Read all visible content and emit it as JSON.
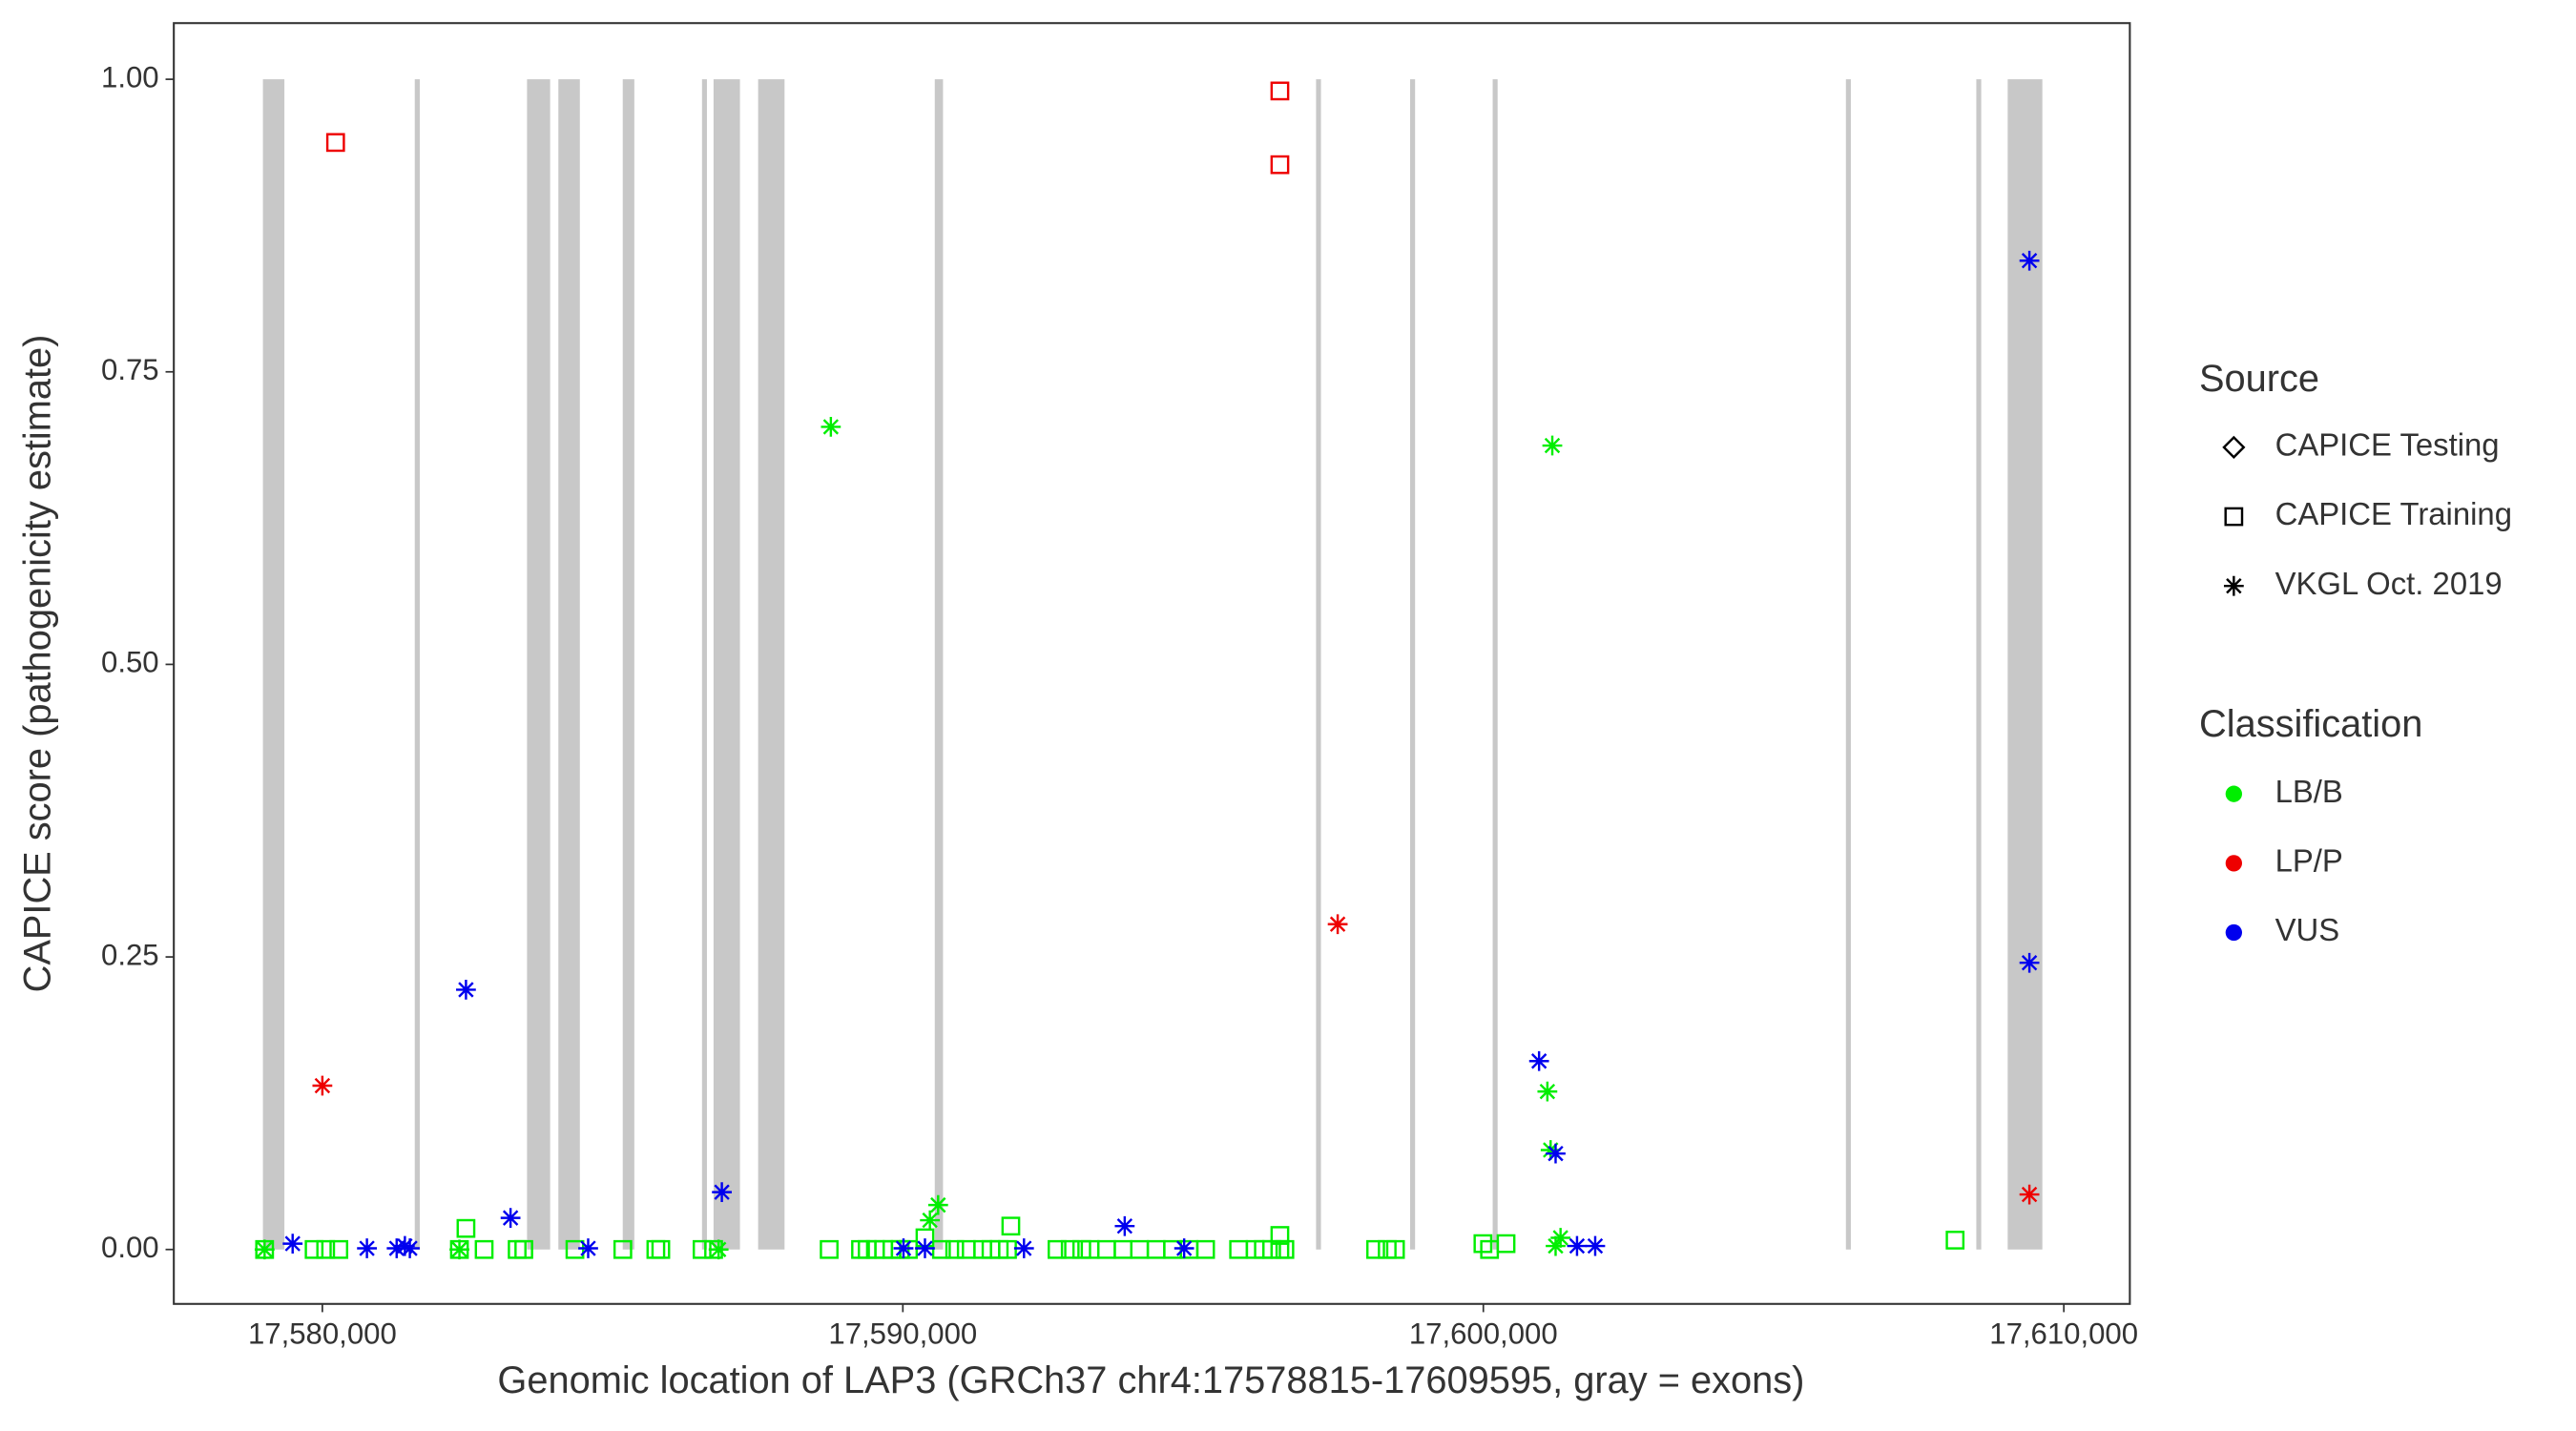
{
  "chart_data": {
    "type": "scatter",
    "x_label": "Genomic location of LAP3 (GRCh37 chr4:17578815-17609595, gray = exons)",
    "y_label": "CAPICE score (pathogenicity estimate)",
    "xlim": [
      17577441,
      17611137
    ],
    "ylim": [
      -0.0465,
      1.048
    ],
    "xticks": [
      {
        "value": 17580000,
        "label": "17,580,000"
      },
      {
        "value": 17590000,
        "label": "17,590,000"
      },
      {
        "value": 17600000,
        "label": "17,600,000"
      },
      {
        "value": 17610000,
        "label": "17,610,000"
      }
    ],
    "yticks": [
      {
        "value": 0,
        "label": "0.00"
      },
      {
        "value": 0.25,
        "label": "0.25"
      },
      {
        "value": 0.5,
        "label": "0.50"
      },
      {
        "value": 0.75,
        "label": "0.75"
      },
      {
        "value": 1,
        "label": "1.00"
      }
    ],
    "exon_color": "#c8c8c8",
    "exons": [
      [
        17578976,
        17579346
      ],
      [
        17581592,
        17581678
      ],
      [
        17583526,
        17583924
      ],
      [
        17584066,
        17584436
      ],
      [
        17585175,
        17585374
      ],
      [
        17586540,
        17586625
      ],
      [
        17586739,
        17587194
      ],
      [
        17587507,
        17587962
      ],
      [
        17590550,
        17590692
      ],
      [
        17597118,
        17597203
      ],
      [
        17598739,
        17598824
      ],
      [
        17600161,
        17600246
      ],
      [
        17606246,
        17606331
      ],
      [
        17608492,
        17608577
      ],
      [
        17609033,
        17609630
      ]
    ],
    "legend": {
      "source_title": "Source",
      "sources": [
        {
          "label": "CAPICE Testing",
          "shape": "diamond"
        },
        {
          "label": "CAPICE Training",
          "shape": "square"
        },
        {
          "label": "VKGL Oct. 2019",
          "shape": "asterisk"
        }
      ],
      "classification_title": "Classification",
      "classifications": [
        {
          "label": "LB/B",
          "color": "#00ee00"
        },
        {
          "label": "LP/P",
          "color": "#ee0000"
        },
        {
          "label": "VUS",
          "color": "#0000ee"
        }
      ]
    },
    "series": [
      {
        "source": "CAPICE Training",
        "classification": "LB/B",
        "x": [
          17579005,
          17579858,
          17580057,
          17580284,
          17582361,
          17582474,
          17582787,
          17583356,
          17583470,
          17584351,
          17585176,
          17585745,
          17585830,
          17586541,
          17586740,
          17588731,
          17589271,
          17589385,
          17589527,
          17589670,
          17589812,
          17589954,
          17590096,
          17590381,
          17590665,
          17590893,
          17591092,
          17591376,
          17591518,
          17591660,
          17591803,
          17591860,
          17592656,
          17592883,
          17593082,
          17593225,
          17593509,
          17593793,
          17594078,
          17594362,
          17594647,
          17594931,
          17595215,
          17595784,
          17596069,
          17596211,
          17596353,
          17596495,
          17596495,
          17596581,
          17598145,
          17598344,
          17598486,
          17599993,
          17600107,
          17600391,
          17608127
        ],
        "y": [
          0,
          0,
          0,
          0,
          0,
          0.018,
          0,
          0,
          0,
          0,
          0,
          0,
          0,
          0,
          0,
          0,
          0,
          0,
          0,
          0,
          0,
          0,
          0,
          0.01,
          0,
          0,
          0,
          0,
          0,
          0,
          0,
          0.02,
          0,
          0,
          0,
          0,
          0,
          0,
          0,
          0,
          0,
          0,
          0,
          0,
          0,
          0,
          0,
          0,
          0.012,
          0,
          0,
          0,
          0,
          0.005,
          0,
          0.005,
          0.008
        ]
      },
      {
        "source": "CAPICE Training",
        "classification": "LP/P",
        "x": [
          17580228,
          17596495,
          17596495
        ],
        "y": [
          0.946,
          0.99,
          0.927
        ]
      },
      {
        "source": "VKGL Oct. 2019",
        "classification": "LB/B",
        "x": [
          17579005,
          17582361,
          17586826,
          17588760,
          17590466,
          17590608,
          17601103,
          17601159,
          17601188,
          17601245,
          17601330
        ],
        "y": [
          0,
          0,
          0,
          0.703,
          0.025,
          0.038,
          0.135,
          0.085,
          0.687,
          0.003,
          0.01
        ]
      },
      {
        "source": "VKGL Oct. 2019",
        "classification": "LP/P",
        "x": [
          17580000,
          17597491,
          17609407
        ],
        "y": [
          0.14,
          0.278,
          0.047
        ]
      },
      {
        "source": "VKGL Oct. 2019",
        "classification": "VUS",
        "x": [
          17579488,
          17580768,
          17581280,
          17581422,
          17581507,
          17582474,
          17583242,
          17584579,
          17586882,
          17590011,
          17590381,
          17592087,
          17593822,
          17594846,
          17600960,
          17601245,
          17601614,
          17601927,
          17609407,
          17609407
        ],
        "y": [
          0.005,
          0.001,
          0.001,
          0.003,
          0.001,
          0.222,
          0.027,
          0.001,
          0.049,
          0.001,
          0.001,
          0.001,
          0.02,
          0.001,
          0.161,
          0.082,
          0.003,
          0.003,
          0.845,
          0.245
        ]
      }
    ]
  }
}
